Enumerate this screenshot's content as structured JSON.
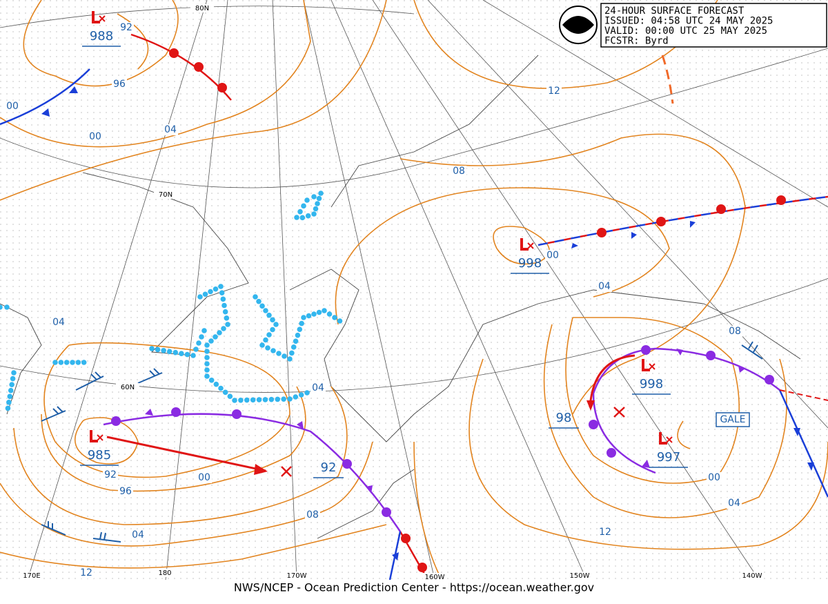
{
  "header": {
    "lines": [
      "24-HOUR SURFACE FORECAST",
      "ISSUED: 04:58 UTC 24 MAY 2025",
      "VALID:  00:00 UTC 25 MAY 2025",
      "FCSTR:  Byrd"
    ],
    "logo": "NOAA"
  },
  "footer": "NWS/NCEP - Ocean Prediction Center - https://ocean.weather.gov",
  "grid_labels": [
    "80N",
    "70N",
    "60N",
    "170E",
    "180",
    "170W",
    "160W",
    "150W",
    "140W"
  ],
  "lows": [
    "988",
    "998",
    "985",
    "998",
    "997"
  ],
  "isobar_labels": [
    "92",
    "96",
    "00",
    "00",
    "04",
    "12",
    "08",
    "00",
    "04",
    "08",
    "04",
    "04",
    "92",
    "96",
    "00",
    "04",
    "08",
    "12",
    "12",
    "04",
    "00"
  ],
  "boxed_labels": [
    "98",
    "92"
  ],
  "warning": "GALE"
}
